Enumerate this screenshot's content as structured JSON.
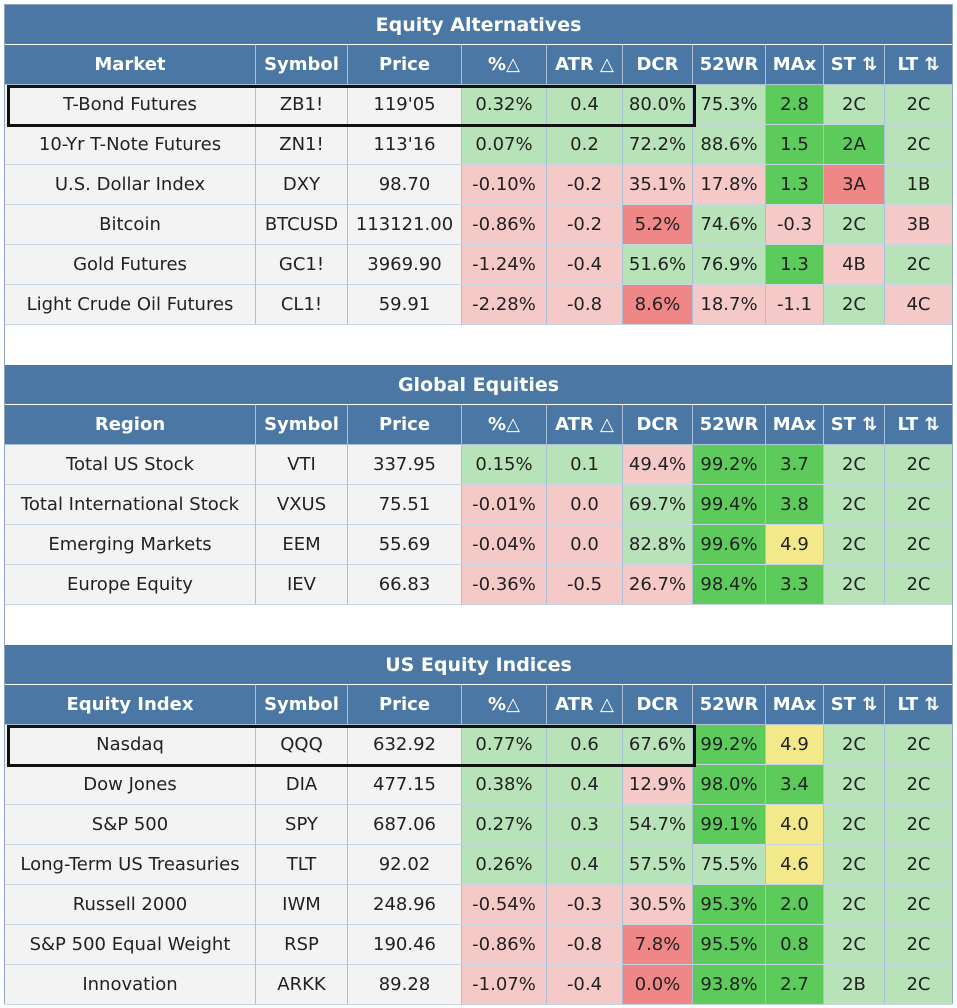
{
  "sections": [
    {
      "title": "Equity Alternatives",
      "headers": [
        "Market",
        "Symbol",
        "Price",
        "%△",
        "ATR △",
        "DCR",
        "52WR",
        "MAx",
        "ST ⇅",
        "LT ⇅"
      ],
      "rows": [
        {
          "cells": [
            "T-Bond Futures",
            "ZB1!",
            "119'05",
            "0.32%",
            "0.4",
            "80.0%",
            "75.3%",
            "2.8",
            "2C",
            "2C"
          ],
          "colors": [
            "n",
            "n",
            "n",
            "g",
            "g",
            "g",
            "g",
            "G",
            "g",
            "g"
          ],
          "highlight": true
        },
        {
          "cells": [
            "10-Yr T-Note Futures",
            "ZN1!",
            "113'16",
            "0.07%",
            "0.2",
            "72.2%",
            "88.6%",
            "1.5",
            "2A",
            "2C"
          ],
          "colors": [
            "n",
            "n",
            "n",
            "g",
            "g",
            "g",
            "g",
            "G",
            "G",
            "g"
          ]
        },
        {
          "cells": [
            "U.S. Dollar Index",
            "DXY",
            "98.70",
            "-0.10%",
            "-0.2",
            "35.1%",
            "17.8%",
            "1.3",
            "3A",
            "1B"
          ],
          "colors": [
            "n",
            "n",
            "n",
            "r",
            "r",
            "r",
            "r",
            "G",
            "R",
            "g"
          ]
        },
        {
          "cells": [
            "Bitcoin",
            "BTCUSD",
            "113121.00",
            "-0.86%",
            "-0.2",
            "5.2%",
            "74.6%",
            "-0.3",
            "2C",
            "3B"
          ],
          "colors": [
            "n",
            "n",
            "n",
            "r",
            "r",
            "R",
            "g",
            "r",
            "g",
            "r"
          ]
        },
        {
          "cells": [
            "Gold Futures",
            "GC1!",
            "3969.90",
            "-1.24%",
            "-0.4",
            "51.6%",
            "76.9%",
            "1.3",
            "4B",
            "2C"
          ],
          "colors": [
            "n",
            "n",
            "n",
            "r",
            "r",
            "g",
            "g",
            "G",
            "r",
            "g"
          ]
        },
        {
          "cells": [
            "Light Crude Oil Futures",
            "CL1!",
            "59.91",
            "-2.28%",
            "-0.8",
            "8.6%",
            "18.7%",
            "-1.1",
            "2C",
            "4C"
          ],
          "colors": [
            "n",
            "n",
            "n",
            "r",
            "r",
            "R",
            "r",
            "r",
            "g",
            "r"
          ]
        }
      ]
    },
    {
      "title": "Global Equities",
      "headers": [
        "Region",
        "Symbol",
        "Price",
        "%△",
        "ATR △",
        "DCR",
        "52WR",
        "MAx",
        "ST ⇅",
        "LT ⇅"
      ],
      "rows": [
        {
          "cells": [
            "Total US Stock",
            "VTI",
            "337.95",
            "0.15%",
            "0.1",
            "49.4%",
            "99.2%",
            "3.7",
            "2C",
            "2C"
          ],
          "colors": [
            "n",
            "n",
            "n",
            "g",
            "g",
            "r",
            "G",
            "G",
            "g",
            "g"
          ]
        },
        {
          "cells": [
            "Total International Stock",
            "VXUS",
            "75.51",
            "-0.01%",
            "0.0",
            "69.7%",
            "99.4%",
            "3.8",
            "2C",
            "2C"
          ],
          "colors": [
            "n",
            "n",
            "n",
            "r",
            "r",
            "g",
            "G",
            "G",
            "g",
            "g"
          ]
        },
        {
          "cells": [
            "Emerging Markets",
            "EEM",
            "55.69",
            "-0.04%",
            "0.0",
            "82.8%",
            "99.6%",
            "4.9",
            "2C",
            "2C"
          ],
          "colors": [
            "n",
            "n",
            "n",
            "r",
            "r",
            "g",
            "G",
            "y",
            "g",
            "g"
          ]
        },
        {
          "cells": [
            "Europe Equity",
            "IEV",
            "66.83",
            "-0.36%",
            "-0.5",
            "26.7%",
            "98.4%",
            "3.3",
            "2C",
            "2C"
          ],
          "colors": [
            "n",
            "n",
            "n",
            "r",
            "r",
            "r",
            "G",
            "G",
            "g",
            "g"
          ]
        }
      ]
    },
    {
      "title": "US Equity Indices",
      "headers": [
        "Equity Index",
        "Symbol",
        "Price",
        "%△",
        "ATR △",
        "DCR",
        "52WR",
        "MAx",
        "ST ⇅",
        "LT ⇅"
      ],
      "rows": [
        {
          "cells": [
            "Nasdaq",
            "QQQ",
            "632.92",
            "0.77%",
            "0.6",
            "67.6%",
            "99.2%",
            "4.9",
            "2C",
            "2C"
          ],
          "colors": [
            "n",
            "n",
            "n",
            "g",
            "g",
            "g",
            "G",
            "y",
            "g",
            "g"
          ],
          "highlight": true
        },
        {
          "cells": [
            "Dow Jones",
            "DIA",
            "477.15",
            "0.38%",
            "0.4",
            "12.9%",
            "98.0%",
            "3.4",
            "2C",
            "2C"
          ],
          "colors": [
            "n",
            "n",
            "n",
            "g",
            "g",
            "r",
            "G",
            "G",
            "g",
            "g"
          ]
        },
        {
          "cells": [
            "S&P 500",
            "SPY",
            "687.06",
            "0.27%",
            "0.3",
            "54.7%",
            "99.1%",
            "4.0",
            "2C",
            "2C"
          ],
          "colors": [
            "n",
            "n",
            "n",
            "g",
            "g",
            "g",
            "G",
            "y",
            "g",
            "g"
          ]
        },
        {
          "cells": [
            "Long-Term US Treasuries",
            "TLT",
            "92.02",
            "0.26%",
            "0.4",
            "57.5%",
            "75.5%",
            "4.6",
            "2C",
            "2C"
          ],
          "colors": [
            "n",
            "n",
            "n",
            "g",
            "g",
            "g",
            "g",
            "y",
            "g",
            "g"
          ]
        },
        {
          "cells": [
            "Russell 2000",
            "IWM",
            "248.96",
            "-0.54%",
            "-0.3",
            "30.5%",
            "95.3%",
            "2.0",
            "2C",
            "2C"
          ],
          "colors": [
            "n",
            "n",
            "n",
            "r",
            "r",
            "r",
            "G",
            "G",
            "g",
            "g"
          ]
        },
        {
          "cells": [
            "S&P 500 Equal Weight",
            "RSP",
            "190.46",
            "-0.86%",
            "-0.8",
            "7.8%",
            "95.5%",
            "0.8",
            "2C",
            "2C"
          ],
          "colors": [
            "n",
            "n",
            "n",
            "r",
            "r",
            "R",
            "G",
            "G",
            "g",
            "g"
          ]
        },
        {
          "cells": [
            "Innovation",
            "ARKK",
            "89.28",
            "-1.07%",
            "-0.4",
            "0.0%",
            "93.8%",
            "2.7",
            "2B",
            "2C"
          ],
          "colors": [
            "n",
            "n",
            "n",
            "r",
            "r",
            "R",
            "G",
            "G",
            "g",
            "g"
          ]
        }
      ]
    }
  ],
  "colors": {
    "header_bg": "#4a77a3",
    "neutral": "#f3f3f3",
    "light_green": "#b8e3b8",
    "green": "#5ccb5c",
    "light_red": "#f6c9c9",
    "red": "#f08787",
    "yellow": "#f3e98a"
  }
}
